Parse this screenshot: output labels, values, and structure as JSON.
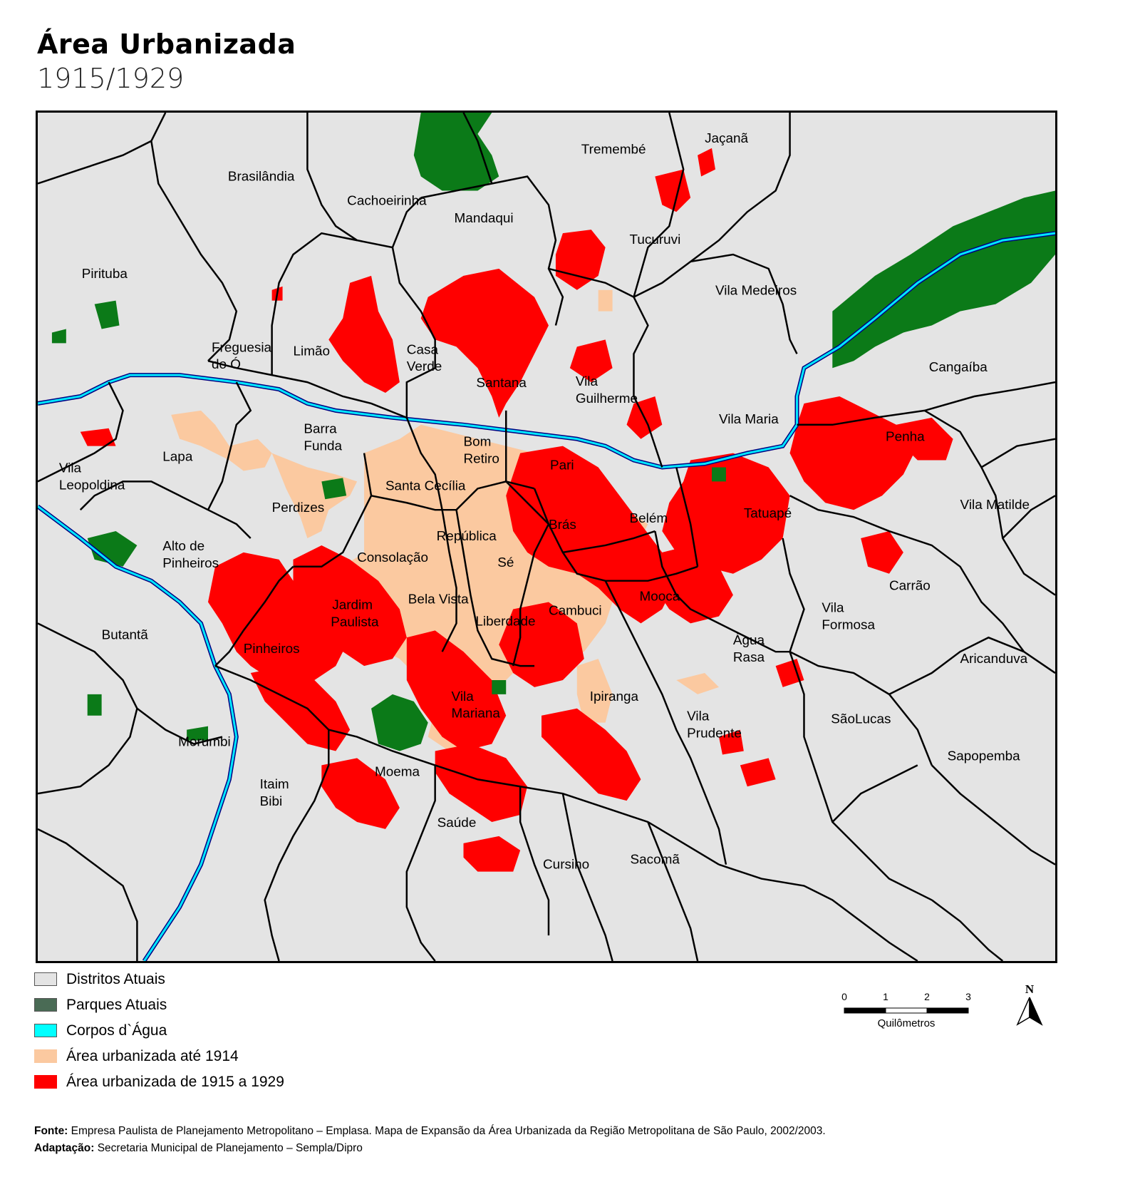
{
  "header": {
    "title": "Área Urbanizada",
    "subtitle": "1915/1929"
  },
  "map": {
    "districts": [
      {
        "name": "Tremembé"
      },
      {
        "name": "Jaçanã"
      },
      {
        "name": "Brasilândia"
      },
      {
        "name": "Cachoeirinha"
      },
      {
        "name": "Mandaqui"
      },
      {
        "name": "Tucuruvi"
      },
      {
        "name": "Pirituba"
      },
      {
        "name": "Vila Medeiros"
      },
      {
        "name": "Freguesia"
      },
      {
        "name": "do Ó"
      },
      {
        "name": "Limão"
      },
      {
        "name": "Casa"
      },
      {
        "name": "Verde"
      },
      {
        "name": "Santana"
      },
      {
        "name": "Vila"
      },
      {
        "name": "Guilherme"
      },
      {
        "name": "Cangaíba"
      },
      {
        "name": "Vila Maria"
      },
      {
        "name": "Barra"
      },
      {
        "name": "Funda"
      },
      {
        "name": "Bom"
      },
      {
        "name": "Retiro"
      },
      {
        "name": "Penha"
      },
      {
        "name": "Vila"
      },
      {
        "name": "Leopoldina"
      },
      {
        "name": "Lapa"
      },
      {
        "name": "Pari"
      },
      {
        "name": "Santa Cecília"
      },
      {
        "name": "Perdizes"
      },
      {
        "name": "Tatuapé"
      },
      {
        "name": "Vila Matilde"
      },
      {
        "name": "Belém"
      },
      {
        "name": "Brás"
      },
      {
        "name": "Alto de"
      },
      {
        "name": "Pinheiros"
      },
      {
        "name": "República"
      },
      {
        "name": "Consolação"
      },
      {
        "name": "Sé"
      },
      {
        "name": "Carrão"
      },
      {
        "name": "Mooca"
      },
      {
        "name": "Jardim"
      },
      {
        "name": "Paulista"
      },
      {
        "name": "Bela Vista"
      },
      {
        "name": "Vila"
      },
      {
        "name": "Formosa"
      },
      {
        "name": "Cambuci"
      },
      {
        "name": "Liberdade"
      },
      {
        "name": "Butantã"
      },
      {
        "name": "Pinheiros"
      },
      {
        "name": "Água"
      },
      {
        "name": "Rasa"
      },
      {
        "name": "Aricanduva"
      },
      {
        "name": "Ipiranga"
      },
      {
        "name": "Vila"
      },
      {
        "name": "Mariana"
      },
      {
        "name": "Vila"
      },
      {
        "name": "Prudente"
      },
      {
        "name": "SãoLucas"
      },
      {
        "name": "Morumbi"
      },
      {
        "name": "Sapopemba"
      },
      {
        "name": "Moema"
      },
      {
        "name": "Itaim"
      },
      {
        "name": "Bibi"
      },
      {
        "name": "Saúde"
      },
      {
        "name": "Cursino"
      },
      {
        "name": "Sacomã"
      }
    ],
    "colors": {
      "district_fill": "#e4e4e4",
      "park": "#0b7a18",
      "water": "#00e8ff",
      "urban_1914": "#fbc9a0",
      "urban_1915_1929": "#ff0000",
      "border": "#000000"
    }
  },
  "legend": {
    "items": [
      {
        "label": "Distritos Atuais",
        "color": "#e4e4e4"
      },
      {
        "label": "Parques Atuais",
        "color": "#4a6b55"
      },
      {
        "label": "Corpos d`Água",
        "color": "#00ffff"
      },
      {
        "label": "Área urbanizada até 1914",
        "color": "#fbc9a0"
      },
      {
        "label": "Área urbanizada de 1915 a 1929",
        "color": "#ff0000"
      }
    ]
  },
  "scale": {
    "ticks": [
      "0",
      "1",
      "2",
      "3"
    ],
    "unit": "Quilômetros"
  },
  "north": {
    "label": "N",
    "icon": "north-arrow-icon"
  },
  "footer": {
    "source_label": "Fonte:",
    "source_text": "Empresa Paulista de Planejamento Metropolitano – Emplasa. Mapa de Expansão da Área Urbanizada da Região Metropolitana de São Paulo, 2002/2003.",
    "adapt_label": "Adaptação:",
    "adapt_text": "Secretaria Municipal de Planejamento – Sempla/Dipro"
  }
}
